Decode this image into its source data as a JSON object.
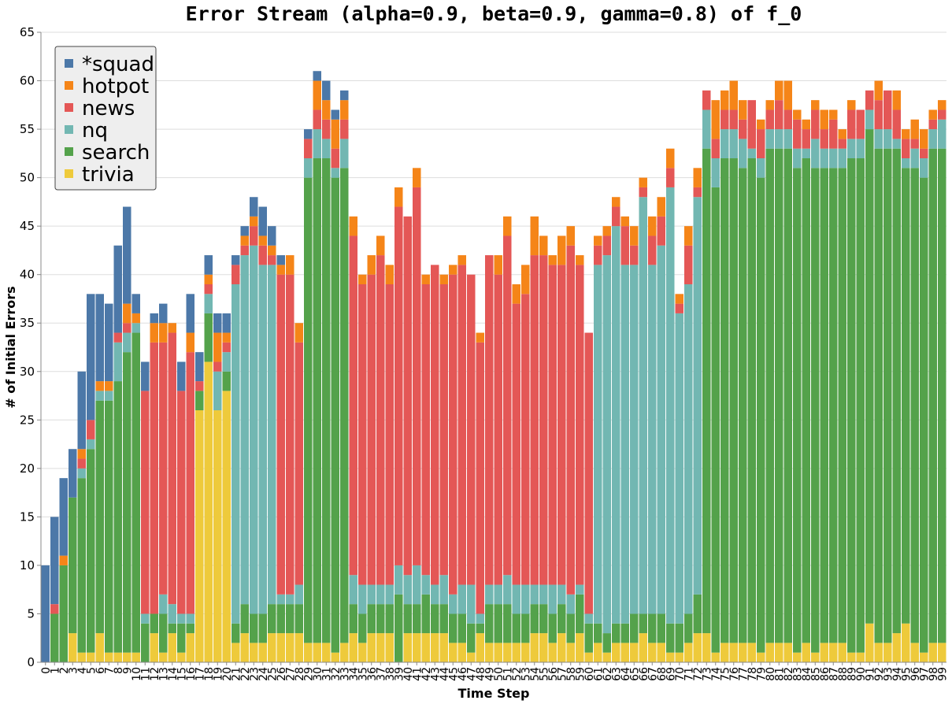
{
  "chart_data": {
    "type": "bar",
    "stacked": true,
    "title": "Error Stream (alpha=0.9, beta=0.9, gamma=0.8) of f_0",
    "xlabel": "Time Step",
    "ylabel": "# of Initial Errors",
    "ylim": [
      0,
      65
    ],
    "yticks": [
      0,
      5,
      10,
      15,
      20,
      25,
      30,
      35,
      40,
      45,
      50,
      55,
      60,
      65
    ],
    "grid": true,
    "legend_position": "top-left",
    "categories": [
      "0",
      "1",
      "2",
      "3",
      "4",
      "5",
      "6",
      "7",
      "8",
      "9",
      "10",
      "11",
      "12",
      "13",
      "14",
      "15",
      "16",
      "17",
      "18",
      "19",
      "20",
      "21",
      "22",
      "23",
      "24",
      "25",
      "26",
      "27",
      "28",
      "29",
      "30",
      "31",
      "32",
      "33",
      "34",
      "35",
      "36",
      "37",
      "38",
      "39",
      "40",
      "41",
      "42",
      "43",
      "44",
      "45",
      "46",
      "47",
      "48",
      "49",
      "50",
      "51",
      "52",
      "53",
      "54",
      "55",
      "56",
      "57",
      "58",
      "59",
      "60",
      "61",
      "62",
      "63",
      "64",
      "65",
      "66",
      "67",
      "68",
      "69",
      "70",
      "71",
      "72",
      "73",
      "74",
      "75",
      "76",
      "77",
      "78",
      "79",
      "80",
      "81",
      "82",
      "83",
      "84",
      "85",
      "86",
      "87",
      "88",
      "89",
      "90",
      "91",
      "92",
      "93",
      "94",
      "95",
      "96",
      "97",
      "98",
      "99"
    ],
    "series": [
      {
        "name": "trivia",
        "color": "#eeca3b",
        "values": [
          0,
          0,
          0,
          3,
          1,
          1,
          3,
          1,
          1,
          1,
          1,
          0,
          3,
          1,
          3,
          1,
          3,
          26,
          31,
          26,
          28,
          2,
          3,
          2,
          2,
          3,
          3,
          3,
          3,
          2,
          2,
          2,
          1,
          2,
          3,
          2,
          3,
          3,
          3,
          0,
          3,
          3,
          3,
          3,
          3,
          2,
          2,
          1,
          3,
          2,
          2,
          2,
          2,
          2,
          3,
          3,
          2,
          3,
          2,
          3,
          1,
          2,
          1,
          2,
          2,
          2,
          3,
          2,
          2,
          1,
          1,
          2,
          3,
          3,
          1,
          2,
          2,
          2,
          2,
          1,
          2,
          2,
          2,
          1,
          2,
          1,
          2,
          2,
          2,
          1,
          1,
          4,
          2,
          2,
          3,
          4,
          2,
          1,
          2,
          2
        ]
      },
      {
        "name": "search",
        "color": "#54a24b",
        "values": [
          0,
          5,
          10,
          14,
          18,
          21,
          24,
          26,
          28,
          31,
          33,
          4,
          2,
          4,
          1,
          3,
          1,
          2,
          5,
          0,
          2,
          2,
          3,
          3,
          3,
          3,
          3,
          3,
          3,
          48,
          50,
          50,
          49,
          49,
          3,
          3,
          3,
          3,
          3,
          7,
          3,
          3,
          4,
          3,
          3,
          3,
          3,
          3,
          1,
          4,
          4,
          4,
          3,
          3,
          3,
          3,
          3,
          3,
          3,
          4,
          3,
          2,
          2,
          2,
          2,
          3,
          2,
          3,
          3,
          3,
          3,
          3,
          4,
          50,
          48,
          50,
          50,
          49,
          50,
          49,
          51,
          51,
          51,
          50,
          50,
          50,
          49,
          49,
          49,
          51,
          51,
          51,
          51,
          51,
          50,
          47,
          49,
          49,
          51,
          51
        ]
      },
      {
        "name": "nq",
        "color": "#72b7b2",
        "values": [
          0,
          0,
          0,
          0,
          1,
          1,
          1,
          1,
          4,
          2,
          1,
          1,
          0,
          2,
          2,
          1,
          1,
          0,
          2,
          4,
          2,
          35,
          36,
          38,
          36,
          35,
          1,
          1,
          2,
          2,
          3,
          2,
          1,
          3,
          3,
          3,
          2,
          2,
          2,
          3,
          3,
          4,
          2,
          2,
          3,
          2,
          3,
          4,
          1,
          2,
          2,
          3,
          3,
          3,
          2,
          2,
          3,
          2,
          2,
          1,
          1,
          37,
          39,
          41,
          37,
          36,
          43,
          36,
          38,
          45,
          32,
          34,
          41,
          4,
          3,
          3,
          3,
          3,
          1,
          2,
          2,
          2,
          2,
          2,
          1,
          3,
          2,
          2,
          2,
          2,
          2,
          2,
          2,
          2,
          1,
          1,
          2,
          2,
          2,
          3
        ]
      },
      {
        "name": "news",
        "color": "#e45756",
        "values": [
          0,
          1,
          0,
          0,
          1,
          2,
          0,
          0,
          1,
          1,
          0,
          23,
          28,
          26,
          28,
          23,
          27,
          1,
          1,
          1,
          1,
          2,
          1,
          2,
          2,
          1,
          33,
          33,
          25,
          2,
          2,
          2,
          2,
          2,
          35,
          31,
          32,
          34,
          31,
          37,
          37,
          39,
          30,
          33,
          30,
          33,
          33,
          32,
          28,
          34,
          32,
          35,
          29,
          30,
          34,
          34,
          33,
          33,
          36,
          33,
          29,
          2,
          2,
          2,
          4,
          2,
          1,
          3,
          3,
          2,
          1,
          4,
          1,
          2,
          2,
          2,
          2,
          2,
          5,
          3,
          2,
          3,
          2,
          3,
          2,
          3,
          2,
          3,
          1,
          3,
          3,
          2,
          3,
          4,
          3,
          2,
          1,
          1,
          1,
          1
        ]
      },
      {
        "name": "hotpot",
        "color": "#f58518",
        "values": [
          0,
          0,
          1,
          0,
          1,
          0,
          1,
          1,
          0,
          2,
          1,
          0,
          2,
          2,
          1,
          0,
          2,
          0,
          1,
          3,
          1,
          0,
          1,
          1,
          1,
          1,
          1,
          2,
          2,
          0,
          3,
          2,
          3,
          2,
          2,
          1,
          2,
          2,
          2,
          2,
          0,
          2,
          1,
          0,
          1,
          1,
          1,
          0,
          1,
          0,
          2,
          2,
          2,
          3,
          4,
          2,
          1,
          3,
          2,
          1,
          0,
          1,
          1,
          1,
          1,
          2,
          1,
          2,
          2,
          2,
          1,
          2,
          2,
          0,
          4,
          2,
          3,
          2,
          0,
          1,
          1,
          2,
          3,
          1,
          1,
          1,
          2,
          1,
          1,
          1,
          0,
          0,
          2,
          0,
          2,
          1,
          2,
          2,
          1,
          1
        ]
      },
      {
        "name": "*squad",
        "color": "#4c78a8",
        "values": [
          10,
          9,
          8,
          5,
          8,
          13,
          9,
          8,
          9,
          10,
          2,
          3,
          1,
          2,
          0,
          3,
          4,
          3,
          2,
          2,
          2,
          1,
          1,
          2,
          3,
          2,
          1,
          0,
          0,
          1,
          1,
          2,
          1,
          1,
          0,
          0,
          0,
          0,
          0,
          0,
          0,
          0,
          0,
          0,
          0,
          0,
          0,
          0,
          0,
          0,
          0,
          0,
          0,
          0,
          0,
          0,
          0,
          0,
          0,
          0,
          0,
          0,
          0,
          0,
          0,
          0,
          0,
          0,
          0,
          0,
          0,
          0,
          0,
          0,
          0,
          0,
          0,
          0,
          0,
          0,
          0,
          0,
          0,
          0,
          0,
          0,
          0,
          0,
          0,
          0,
          0,
          0,
          0,
          0,
          0,
          0,
          0,
          0,
          0,
          0
        ]
      }
    ],
    "legend_order": [
      "*squad",
      "hotpot",
      "news",
      "nq",
      "search",
      "trivia"
    ]
  }
}
